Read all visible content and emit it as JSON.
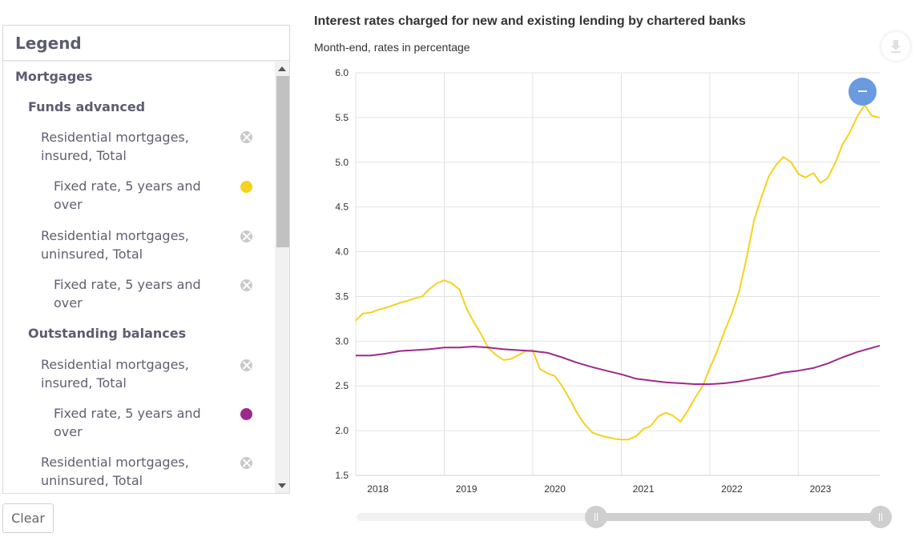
{
  "legend": {
    "title": "Legend",
    "clear_label": "Clear",
    "groups": [
      {
        "label": "Mortgages"
      },
      {
        "label": "Funds advanced"
      },
      {
        "label": "Residential mortgages, insured, Total",
        "active": false
      },
      {
        "label": "Fixed rate, 5 years and over",
        "active": true,
        "color": "#f4d21d"
      },
      {
        "label": "Residential mortgages, uninsured, Total",
        "active": false
      },
      {
        "label": "Fixed rate, 5 years and over",
        "active": false
      },
      {
        "label": "Outstanding balances"
      },
      {
        "label": "Residential mortgages, insured, Total",
        "active": false
      },
      {
        "label": "Fixed rate, 5 years and over",
        "active": true,
        "color": "#9c2a8a"
      },
      {
        "label": "Residential mortgages, uninsured, Total",
        "active": false
      }
    ]
  },
  "chart_data": {
    "type": "line",
    "title": "Interest rates charged for new and existing lending by chartered banks",
    "subtitle": "Month-end, rates in percentage",
    "xlabel": "",
    "ylabel": "",
    "ylim": [
      1.5,
      6.0
    ],
    "yticks": [
      "1.5",
      "2.0",
      "2.5",
      "3.0",
      "3.5",
      "4.0",
      "4.5",
      "5.0",
      "5.5",
      "6.0"
    ],
    "xlim": [
      2018.0,
      2023.92
    ],
    "xticks": [
      "2018",
      "2019",
      "2020",
      "2021",
      "2022",
      "2023"
    ],
    "grid": true,
    "series": [
      {
        "name": "Funds advanced - Residential mortgages, insured, Fixed rate, 5 years and over",
        "color": "#f4d21d",
        "x": [
          2018.0,
          2018.08,
          2018.17,
          2018.25,
          2018.33,
          2018.42,
          2018.5,
          2018.58,
          2018.67,
          2018.75,
          2018.83,
          2018.92,
          2019.0,
          2019.08,
          2019.17,
          2019.25,
          2019.33,
          2019.42,
          2019.5,
          2019.58,
          2019.67,
          2019.75,
          2019.83,
          2019.92,
          2020.0,
          2020.08,
          2020.17,
          2020.25,
          2020.33,
          2020.42,
          2020.5,
          2020.58,
          2020.67,
          2020.75,
          2020.83,
          2020.92,
          2021.0,
          2021.08,
          2021.17,
          2021.25,
          2021.33,
          2021.42,
          2021.5,
          2021.58,
          2021.67,
          2021.75,
          2021.83,
          2021.92,
          2022.0,
          2022.08,
          2022.17,
          2022.25,
          2022.33,
          2022.42,
          2022.5,
          2022.58,
          2022.67,
          2022.75,
          2022.83,
          2022.92,
          2023.0,
          2023.08,
          2023.17,
          2023.25,
          2023.33,
          2023.42,
          2023.5,
          2023.58,
          2023.67,
          2023.75,
          2023.83,
          2023.92
        ],
        "values": [
          3.23,
          3.31,
          3.32,
          3.35,
          3.37,
          3.4,
          3.43,
          3.45,
          3.48,
          3.5,
          3.58,
          3.65,
          3.68,
          3.65,
          3.58,
          3.37,
          3.22,
          3.07,
          2.92,
          2.85,
          2.79,
          2.8,
          2.84,
          2.89,
          2.9,
          2.69,
          2.64,
          2.61,
          2.5,
          2.35,
          2.2,
          2.08,
          1.98,
          1.95,
          1.93,
          1.91,
          1.9,
          1.9,
          1.94,
          2.02,
          2.05,
          2.16,
          2.2,
          2.17,
          2.1,
          2.22,
          2.36,
          2.5,
          2.7,
          2.88,
          3.12,
          3.31,
          3.55,
          3.95,
          4.35,
          4.6,
          4.85,
          4.97,
          5.06,
          5.0,
          4.87,
          4.83,
          4.88,
          4.77,
          4.82,
          5.0,
          5.2,
          5.33,
          5.52,
          5.64,
          5.52,
          5.5
        ]
      },
      {
        "name": "Outstanding balances - Residential mortgages, insured, Fixed rate, 5 years and over",
        "color": "#9c2a8a",
        "x": [
          2018.0,
          2018.17,
          2018.33,
          2018.5,
          2018.67,
          2018.83,
          2019.0,
          2019.17,
          2019.33,
          2019.5,
          2019.67,
          2019.83,
          2020.0,
          2020.17,
          2020.33,
          2020.5,
          2020.67,
          2020.83,
          2021.0,
          2021.17,
          2021.33,
          2021.5,
          2021.67,
          2021.83,
          2022.0,
          2022.17,
          2022.33,
          2022.5,
          2022.67,
          2022.83,
          2023.0,
          2023.17,
          2023.33,
          2023.5,
          2023.67,
          2023.92
        ],
        "values": [
          2.84,
          2.84,
          2.86,
          2.89,
          2.9,
          2.91,
          2.93,
          2.93,
          2.94,
          2.93,
          2.91,
          2.9,
          2.89,
          2.87,
          2.82,
          2.76,
          2.71,
          2.67,
          2.63,
          2.58,
          2.56,
          2.54,
          2.53,
          2.52,
          2.52,
          2.53,
          2.55,
          2.58,
          2.61,
          2.65,
          2.67,
          2.7,
          2.75,
          2.82,
          2.88,
          2.95
        ]
      }
    ]
  }
}
